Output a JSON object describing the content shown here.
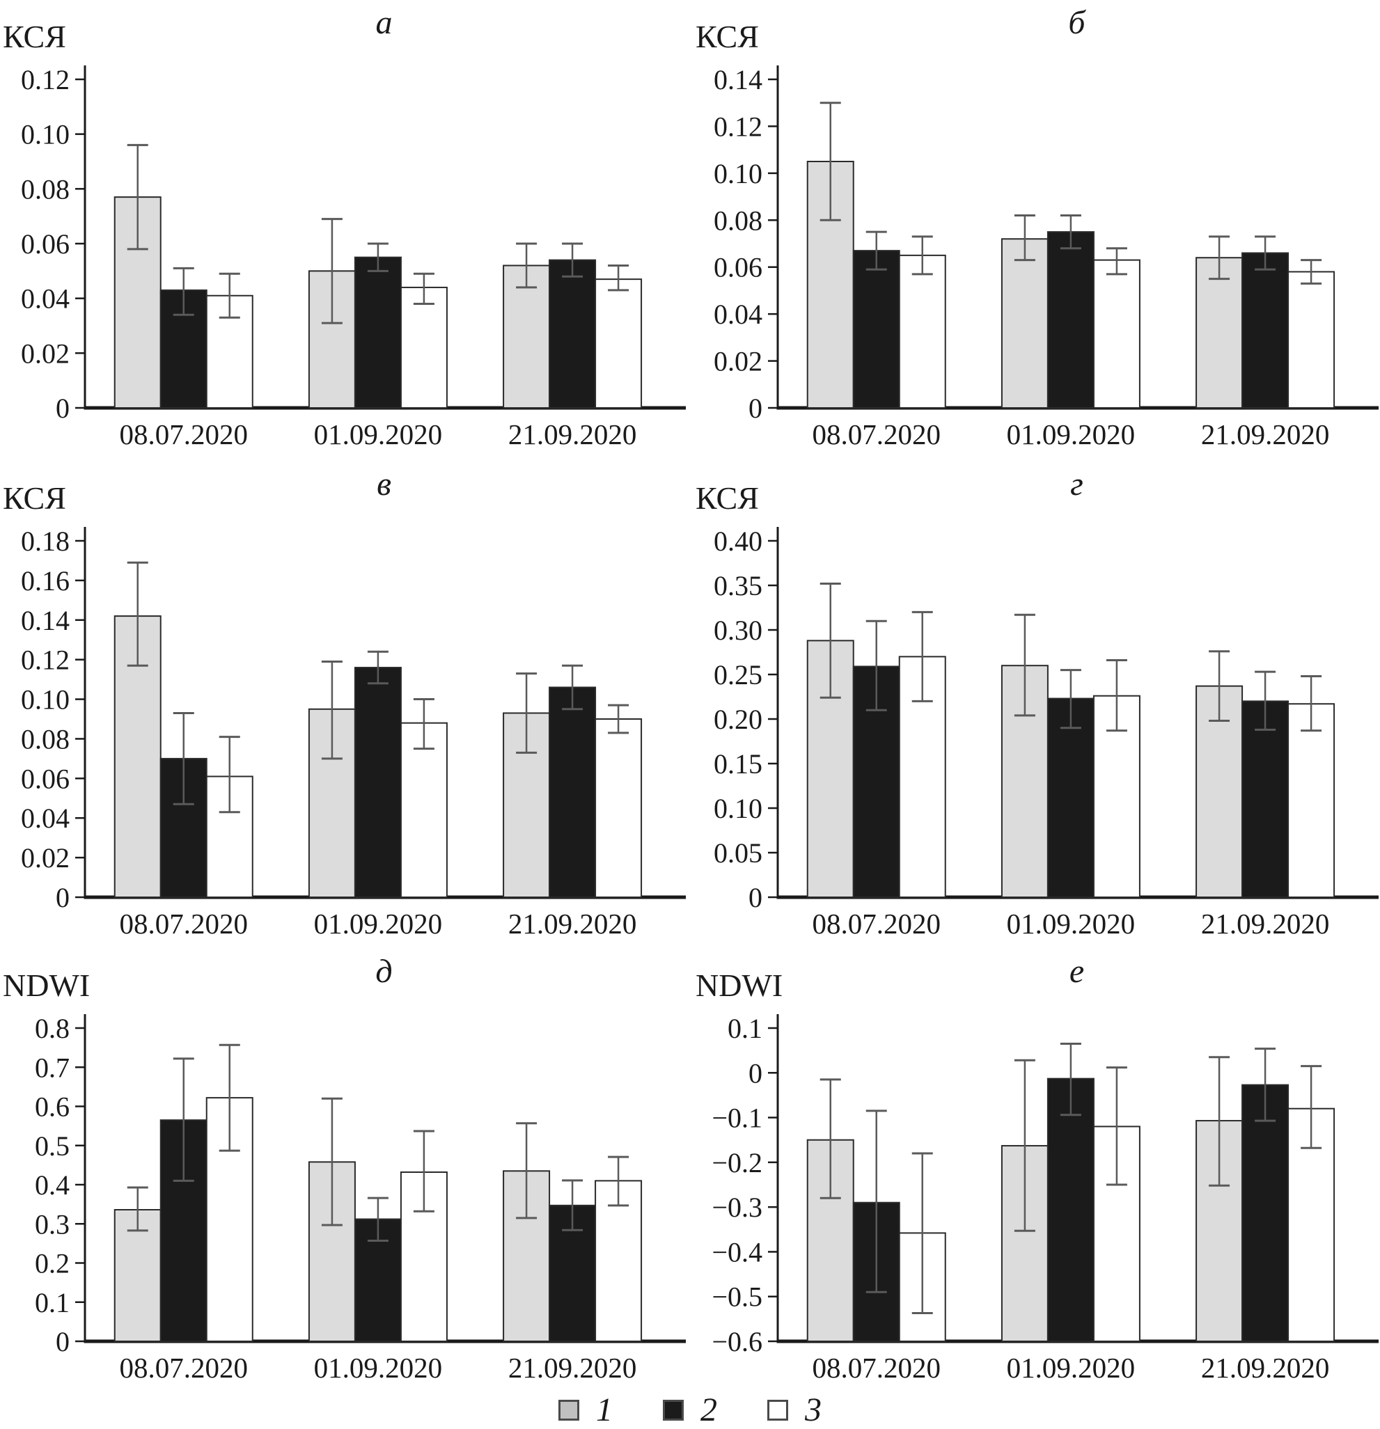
{
  "page": {
    "background": "#ffffff"
  },
  "colors": {
    "gray": "#dcdcdc",
    "black": "#1b1b1b",
    "white": "#ffffff",
    "axis": "#1a1a1a",
    "bar_border": "#2a2a2a",
    "error": "#5a5a5a",
    "legend_gray": "#c0c0c0"
  },
  "legend": {
    "items": [
      {
        "label": "1",
        "swatch": "gray"
      },
      {
        "label": "2",
        "swatch": "black"
      },
      {
        "label": "3",
        "swatch": "white"
      }
    ]
  },
  "chart_data": [
    {
      "id": "a",
      "type": "bar",
      "title": "а",
      "ylabel": "КСЯ",
      "categories": [
        "08.07.2020",
        "01.09.2020",
        "21.09.2020"
      ],
      "ylim": [
        0,
        0.12
      ],
      "ytick_step": 0.02,
      "tick_decimals": 2,
      "grid": false,
      "legend_position": "shared-bottom",
      "series": [
        {
          "name": "1",
          "color_key": "gray",
          "values": [
            0.077,
            0.05,
            0.052
          ],
          "err_low": [
            0.058,
            0.031,
            0.044
          ],
          "err_high": [
            0.096,
            0.069,
            0.06
          ]
        },
        {
          "name": "2",
          "color_key": "black",
          "values": [
            0.043,
            0.055,
            0.054
          ],
          "err_low": [
            0.034,
            0.05,
            0.048
          ],
          "err_high": [
            0.051,
            0.06,
            0.06
          ]
        },
        {
          "name": "3",
          "color_key": "white",
          "values": [
            0.041,
            0.044,
            0.047
          ],
          "err_low": [
            0.033,
            0.038,
            0.043
          ],
          "err_high": [
            0.049,
            0.049,
            0.052
          ]
        }
      ]
    },
    {
      "id": "b",
      "type": "bar",
      "title": "б",
      "ylabel": "КСЯ",
      "categories": [
        "08.07.2020",
        "01.09.2020",
        "21.09.2020"
      ],
      "ylim": [
        0,
        0.14
      ],
      "ytick_step": 0.02,
      "tick_decimals": 2,
      "grid": false,
      "legend_position": "shared-bottom",
      "series": [
        {
          "name": "1",
          "color_key": "gray",
          "values": [
            0.105,
            0.072,
            0.064
          ],
          "err_low": [
            0.08,
            0.063,
            0.055
          ],
          "err_high": [
            0.13,
            0.082,
            0.073
          ]
        },
        {
          "name": "2",
          "color_key": "black",
          "values": [
            0.067,
            0.075,
            0.066
          ],
          "err_low": [
            0.059,
            0.068,
            0.059
          ],
          "err_high": [
            0.075,
            0.082,
            0.073
          ]
        },
        {
          "name": "3",
          "color_key": "white",
          "values": [
            0.065,
            0.063,
            0.058
          ],
          "err_low": [
            0.057,
            0.057,
            0.053
          ],
          "err_high": [
            0.073,
            0.068,
            0.063
          ]
        }
      ]
    },
    {
      "id": "v",
      "type": "bar",
      "title": "в",
      "ylabel": "КСЯ",
      "categories": [
        "08.07.2020",
        "01.09.2020",
        "21.09.2020"
      ],
      "ylim": [
        0,
        0.18
      ],
      "ytick_step": 0.02,
      "tick_decimals": 2,
      "grid": false,
      "legend_position": "shared-bottom",
      "series": [
        {
          "name": "1",
          "color_key": "gray",
          "values": [
            0.142,
            0.095,
            0.093
          ],
          "err_low": [
            0.117,
            0.07,
            0.073
          ],
          "err_high": [
            0.169,
            0.119,
            0.113
          ]
        },
        {
          "name": "2",
          "color_key": "black",
          "values": [
            0.07,
            0.116,
            0.106
          ],
          "err_low": [
            0.047,
            0.108,
            0.095
          ],
          "err_high": [
            0.093,
            0.124,
            0.117
          ]
        },
        {
          "name": "3",
          "color_key": "white",
          "values": [
            0.061,
            0.088,
            0.09
          ],
          "err_low": [
            0.043,
            0.075,
            0.083
          ],
          "err_high": [
            0.081,
            0.1,
            0.097
          ]
        }
      ]
    },
    {
      "id": "g",
      "type": "bar",
      "title": "г",
      "ylabel": "КСЯ",
      "categories": [
        "08.07.2020",
        "01.09.2020",
        "21.09.2020"
      ],
      "ylim": [
        0,
        0.4
      ],
      "ytick_step": 0.05,
      "tick_decimals": 2,
      "grid": false,
      "legend_position": "shared-bottom",
      "series": [
        {
          "name": "1",
          "color_key": "gray",
          "values": [
            0.288,
            0.26,
            0.237
          ],
          "err_low": [
            0.224,
            0.204,
            0.198
          ],
          "err_high": [
            0.352,
            0.317,
            0.276
          ]
        },
        {
          "name": "2",
          "color_key": "black",
          "values": [
            0.259,
            0.223,
            0.22
          ],
          "err_low": [
            0.21,
            0.19,
            0.188
          ],
          "err_high": [
            0.31,
            0.255,
            0.253
          ]
        },
        {
          "name": "3",
          "color_key": "white",
          "values": [
            0.27,
            0.226,
            0.217
          ],
          "err_low": [
            0.22,
            0.187,
            0.187
          ],
          "err_high": [
            0.32,
            0.266,
            0.248
          ]
        }
      ]
    },
    {
      "id": "d",
      "type": "bar",
      "title": "д",
      "ylabel": "NDWI",
      "categories": [
        "08.07.2020",
        "01.09.2020",
        "21.09.2020"
      ],
      "ylim": [
        0,
        0.8
      ],
      "ytick_step": 0.1,
      "tick_decimals": 1,
      "grid": false,
      "legend_position": "shared-bottom",
      "series": [
        {
          "name": "1",
          "color_key": "gray",
          "values": [
            0.336,
            0.458,
            0.435
          ],
          "err_low": [
            0.283,
            0.297,
            0.315
          ],
          "err_high": [
            0.393,
            0.62,
            0.557
          ]
        },
        {
          "name": "2",
          "color_key": "black",
          "values": [
            0.565,
            0.312,
            0.347
          ],
          "err_low": [
            0.41,
            0.257,
            0.284
          ],
          "err_high": [
            0.722,
            0.366,
            0.411
          ]
        },
        {
          "name": "3",
          "color_key": "white",
          "values": [
            0.622,
            0.432,
            0.41
          ],
          "err_low": [
            0.487,
            0.332,
            0.347
          ],
          "err_high": [
            0.757,
            0.537,
            0.471
          ]
        }
      ]
    },
    {
      "id": "e",
      "type": "bar",
      "title": "е",
      "ylabel": "NDWI",
      "categories": [
        "08.07.2020",
        "01.09.2020",
        "21.09.2020"
      ],
      "ylim": [
        -0.6,
        0.1
      ],
      "ytick_step": 0.1,
      "tick_decimals": 1,
      "grid": false,
      "legend_position": "shared-bottom",
      "series": [
        {
          "name": "1",
          "color_key": "gray",
          "values": [
            -0.15,
            -0.163,
            -0.107
          ],
          "err_low": [
            -0.28,
            -0.353,
            -0.252
          ],
          "err_high": [
            -0.015,
            0.028,
            0.035
          ]
        },
        {
          "name": "2",
          "color_key": "black",
          "values": [
            -0.29,
            -0.013,
            -0.027
          ],
          "err_low": [
            -0.49,
            -0.094,
            -0.107
          ],
          "err_high": [
            -0.085,
            0.065,
            0.054
          ]
        },
        {
          "name": "3",
          "color_key": "white",
          "values": [
            -0.358,
            -0.12,
            -0.08
          ],
          "err_low": [
            -0.537,
            -0.25,
            -0.168
          ],
          "err_high": [
            -0.18,
            0.012,
            0.015
          ]
        }
      ]
    }
  ]
}
